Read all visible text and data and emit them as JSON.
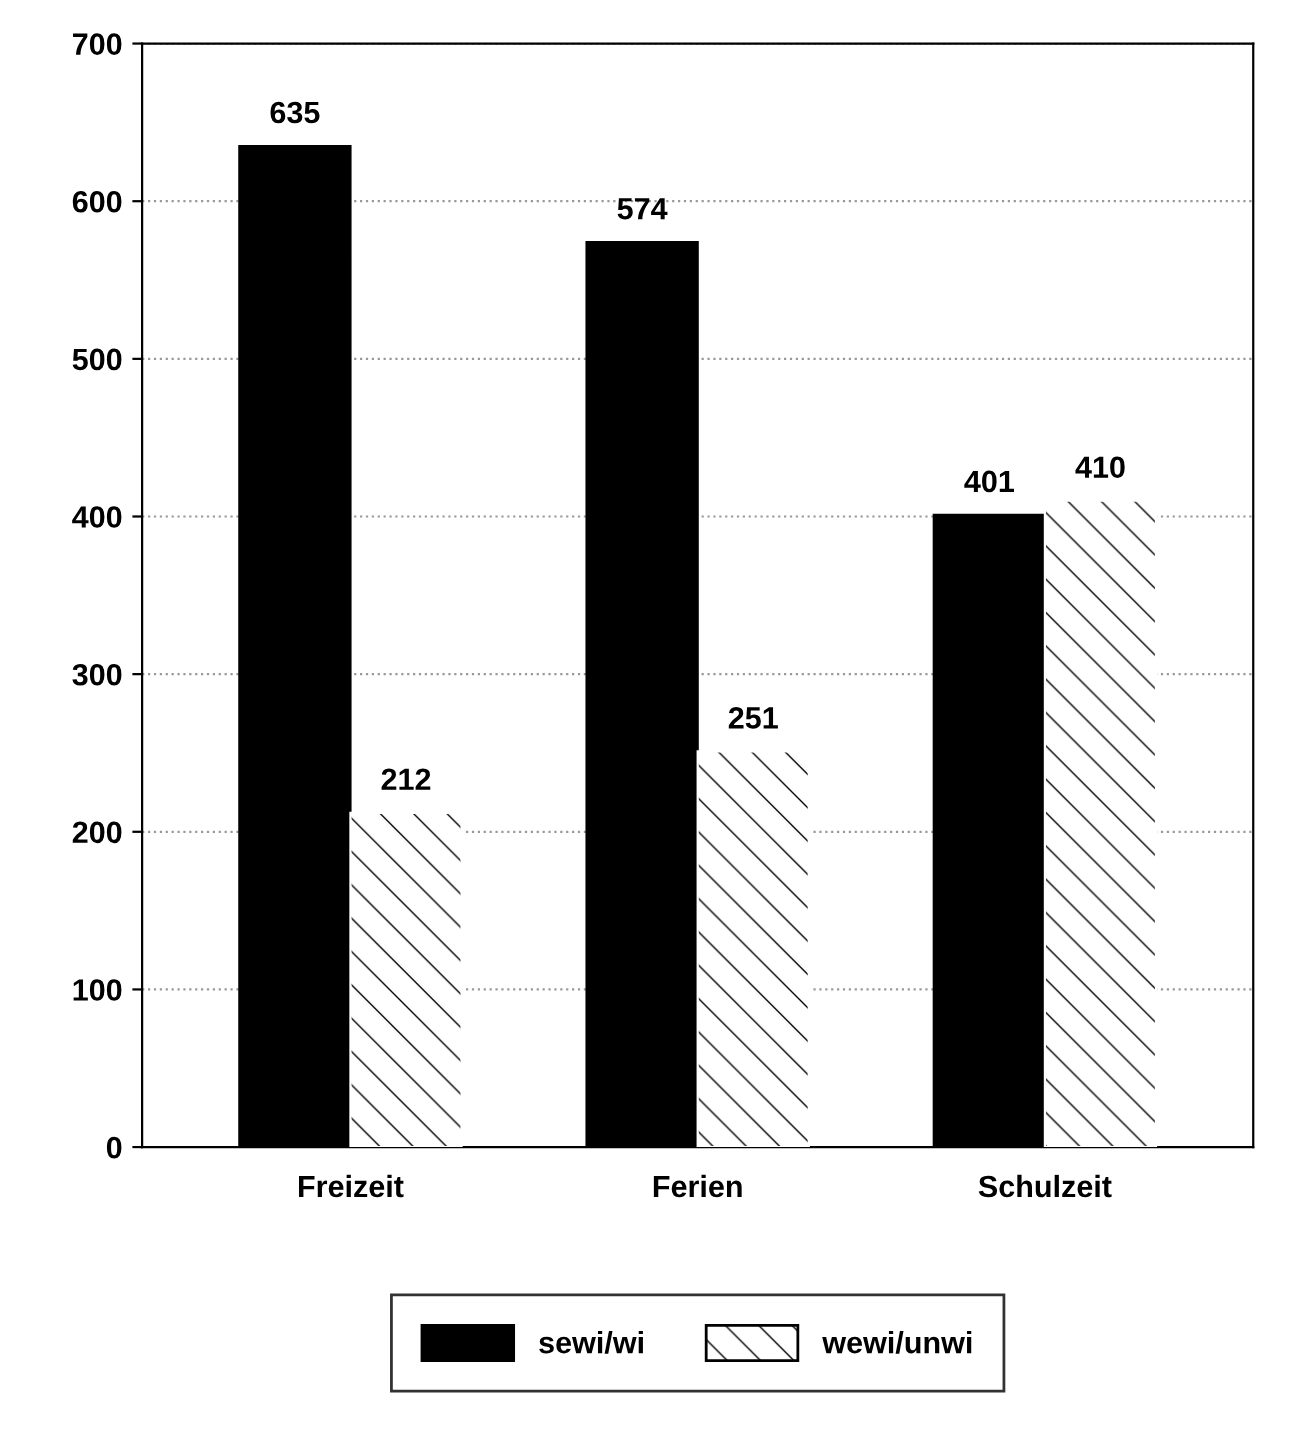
{
  "chart_data": {
    "type": "bar",
    "categories": [
      "Freizeit",
      "Ferien",
      "Schulzeit"
    ],
    "series": [
      {
        "name": "sewi/wi",
        "color": "#000000",
        "values": [
          635,
          574,
          401
        ]
      },
      {
        "name": "wewi/unwi",
        "color": "#ffffff",
        "values": [
          212,
          251,
          410
        ]
      }
    ],
    "ylim": [
      0,
      700
    ],
    "yticks": [
      0,
      100,
      200,
      300,
      400,
      500,
      600,
      700
    ],
    "grid": "y",
    "legend": "bottom",
    "data_labels": true
  }
}
